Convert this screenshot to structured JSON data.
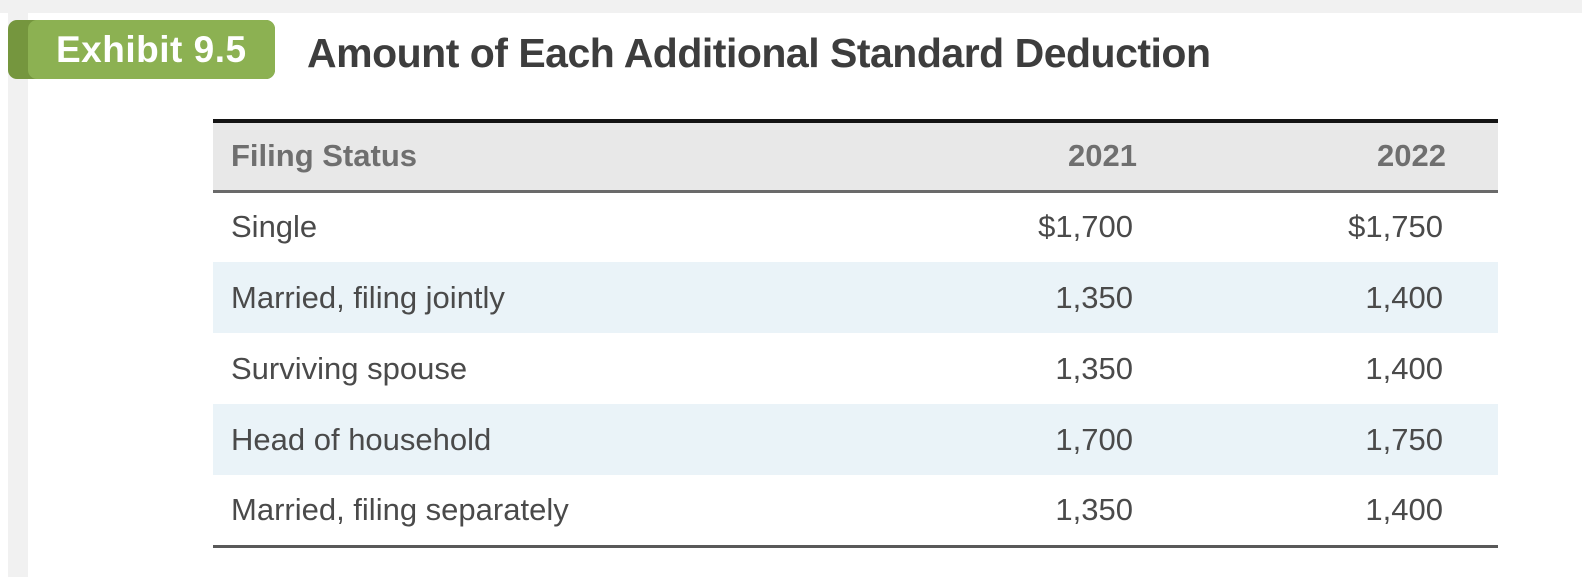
{
  "exhibit": {
    "label": "Exhibit 9.5",
    "title": "Amount of Each Additional Standard Deduction"
  },
  "table": {
    "columns": {
      "filing_status": "Filing Status",
      "y2021": "2021",
      "y2022": "2022"
    },
    "rows": [
      {
        "filing_status": "Single",
        "y2021": "$1,700",
        "y2022": "$1,750"
      },
      {
        "filing_status": "Married, filing jointly",
        "y2021": "1,350",
        "y2022": "1,400"
      },
      {
        "filing_status": "Surviving spouse",
        "y2021": "1,350",
        "y2022": "1,400"
      },
      {
        "filing_status": "Head of household",
        "y2021": "1,700",
        "y2022": "1,750"
      },
      {
        "filing_status": "Married, filing separately",
        "y2021": "1,350",
        "y2022": "1,400"
      }
    ]
  },
  "colors": {
    "badge_green": "#8cb152",
    "badge_dark_green": "#75963e",
    "header_bg": "#e8e8e8",
    "row_alt_blue": "#eaf3f8",
    "title_text": "#3d3d3d",
    "body_text": "#4a4a4a",
    "header_text": "#6f6f6f"
  }
}
